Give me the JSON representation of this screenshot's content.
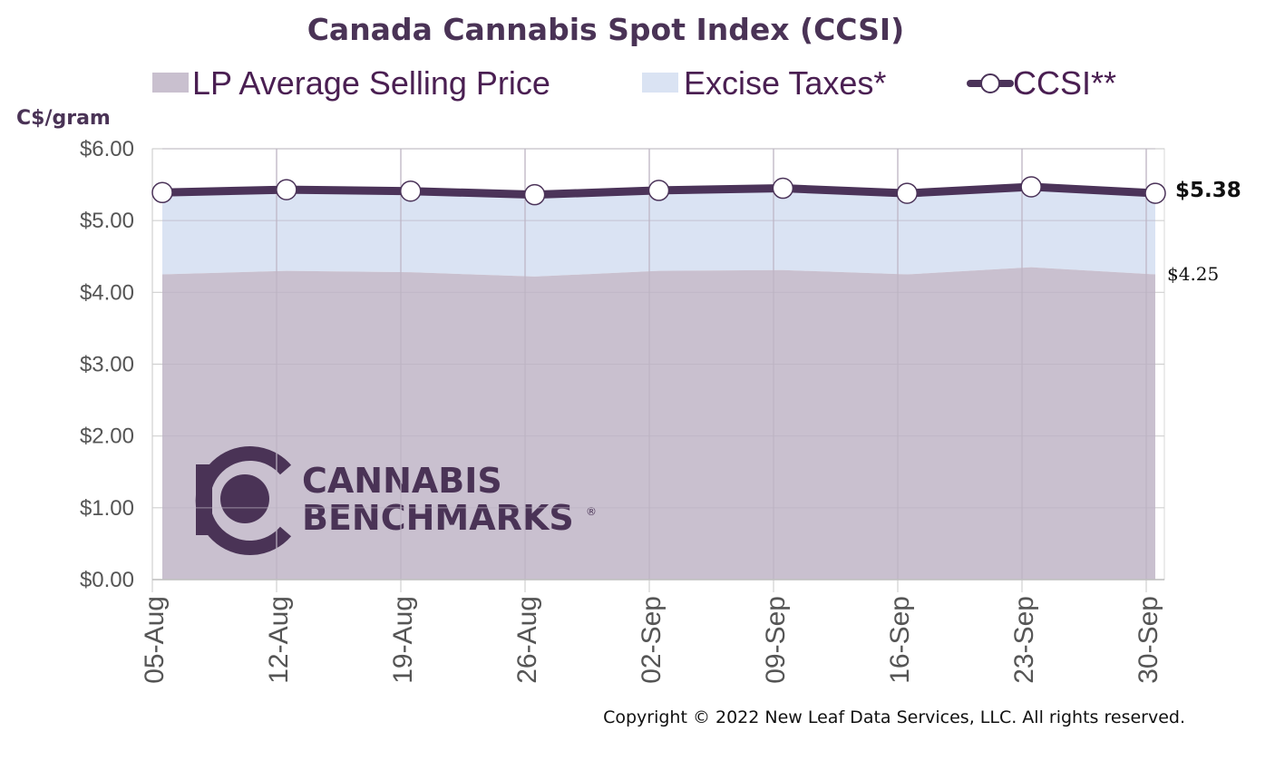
{
  "chart_data": {
    "type": "area",
    "title": "Canada Cannabis Spot Index (CCSI)",
    "ylabel": "C$/gram",
    "xlabel": "",
    "ylim": [
      0,
      6
    ],
    "yticks": [
      "$0.00",
      "$1.00",
      "$2.00",
      "$3.00",
      "$4.00",
      "$5.00",
      "$6.00"
    ],
    "ytick_values": [
      0,
      1,
      2,
      3,
      4,
      5,
      6
    ],
    "categories": [
      "05-Aug",
      "12-Aug",
      "19-Aug",
      "26-Aug",
      "02-Sep",
      "09-Sep",
      "16-Sep",
      "23-Sep",
      "30-Sep"
    ],
    "grid": true,
    "legend_position": "top",
    "series": [
      {
        "name": "LP Average Selling Price",
        "kind": "area",
        "color": "#c9c0cf",
        "values": [
          4.25,
          4.3,
          4.28,
          4.22,
          4.3,
          4.31,
          4.25,
          4.35,
          4.25
        ]
      },
      {
        "name": "Excise Taxes*",
        "kind": "stacked-area",
        "color": "#dae3f3",
        "values": [
          1.14,
          1.13,
          1.13,
          1.14,
          1.12,
          1.14,
          1.13,
          1.12,
          1.13
        ]
      },
      {
        "name": "CCSI**",
        "kind": "line-markers",
        "color": "#4b3359",
        "values": [
          5.39,
          5.43,
          5.41,
          5.36,
          5.42,
          5.45,
          5.38,
          5.47,
          5.38
        ]
      }
    ],
    "annotations": {
      "ccsi_last": "$5.38",
      "lp_last": "$4.25"
    }
  },
  "watermark": {
    "line1": "CANNABIS",
    "line2": "BENCHMARKS",
    "mark": "®"
  },
  "copyright": "Copyright © 2022 New Leaf Data Services, LLC. All rights reserved.",
  "colors": {
    "lp_area": "#c9c0cf",
    "excise_area": "#dae3f3",
    "ccsi_line": "#4b3359",
    "grid": "#bdbdbd",
    "brand": "#4a3356"
  }
}
